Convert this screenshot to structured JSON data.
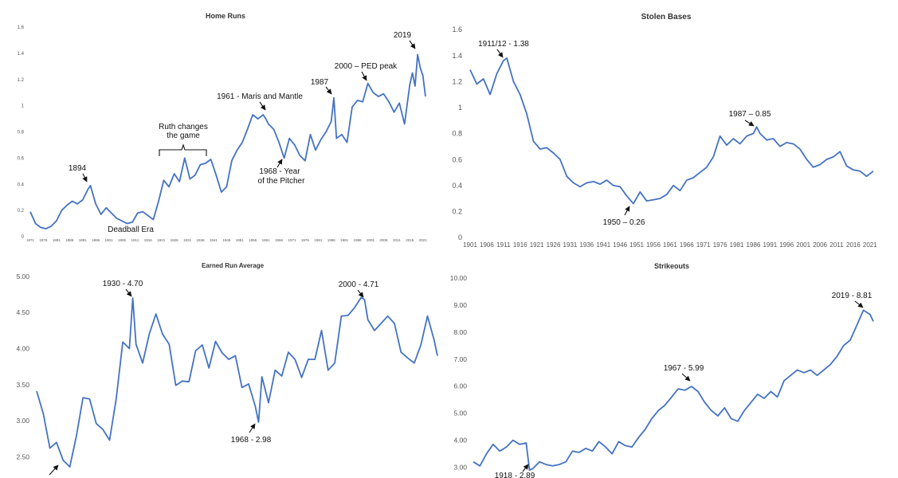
{
  "colors": {
    "line": "#4472c4",
    "text": "#333333",
    "tick": "#555555",
    "arrow": "#111111"
  },
  "chart_data": [
    {
      "type": "line",
      "title": "Home Runs",
      "ylim": [
        0,
        1.6
      ],
      "yticks": [
        "0",
        "0.2",
        "0.4",
        "0.6",
        "0.8",
        "1",
        "1.2",
        "1.4",
        "1.6"
      ],
      "xticks": [
        "1871",
        "1876",
        "1881",
        "1886",
        "1891",
        "1896",
        "1901",
        "1906",
        "1911",
        "1916",
        "1921",
        "1926",
        "1931",
        "1936",
        "1941",
        "1946",
        "1951",
        "1956",
        "1961",
        "1966",
        "1971",
        "1976",
        "1981",
        "1986",
        "1991",
        "1996",
        "2001",
        "2006",
        "2011",
        "2016",
        "2021"
      ],
      "grid": false,
      "series": [
        {
          "x": [
            1871,
            1873,
            1875,
            1877,
            1879,
            1881,
            1883,
            1885,
            1887,
            1889,
            1891,
            1893,
            1894,
            1896,
            1898,
            1900,
            1902,
            1904,
            1906,
            1908,
            1910,
            1912,
            1914,
            1916,
            1918,
            1920,
            1922,
            1924,
            1926,
            1928,
            1930,
            1932,
            1934,
            1936,
            1938,
            1940,
            1942,
            1944,
            1946,
            1948,
            1950,
            1952,
            1954,
            1956,
            1958,
            1960,
            1961,
            1962,
            1964,
            1966,
            1968,
            1970,
            1972,
            1974,
            1976,
            1978,
            1980,
            1982,
            1984,
            1986,
            1987,
            1988,
            1990,
            1992,
            1994,
            1996,
            1998,
            2000,
            2002,
            2004,
            2006,
            2008,
            2010,
            2012,
            2014,
            2016,
            2017,
            2018,
            2019,
            2020,
            2021,
            2022
          ],
          "values": [
            0.19,
            0.1,
            0.07,
            0.06,
            0.08,
            0.12,
            0.2,
            0.24,
            0.27,
            0.25,
            0.28,
            0.36,
            0.39,
            0.25,
            0.17,
            0.22,
            0.18,
            0.14,
            0.12,
            0.1,
            0.11,
            0.18,
            0.19,
            0.16,
            0.13,
            0.27,
            0.43,
            0.38,
            0.48,
            0.42,
            0.6,
            0.44,
            0.47,
            0.55,
            0.56,
            0.59,
            0.47,
            0.34,
            0.38,
            0.58,
            0.66,
            0.72,
            0.82,
            0.93,
            0.9,
            0.93,
            0.9,
            0.86,
            0.82,
            0.72,
            0.6,
            0.75,
            0.7,
            0.62,
            0.58,
            0.78,
            0.66,
            0.74,
            0.8,
            0.88,
            1.06,
            0.75,
            0.78,
            0.72,
            0.99,
            1.04,
            1.03,
            1.17,
            1.1,
            1.07,
            1.09,
            1.03,
            0.95,
            1.02,
            0.86,
            1.16,
            1.25,
            1.15,
            1.39,
            1.29,
            1.23,
            1.07
          ]
        }
      ],
      "annotations": [
        {
          "text": "1894",
          "x": 1894,
          "y": 0.39
        },
        {
          "text": "Deadball Era",
          "x": 1908,
          "y": 0.1
        },
        {
          "text": "Ruth changes",
          "x": 1931,
          "y": 0.57
        },
        {
          "text": "the game",
          "x": 1931,
          "y": 0.57
        },
        {
          "text": "1961 - Maris and Mantle",
          "x": 1961,
          "y": 0.94
        },
        {
          "text": "1968 - Year",
          "x": 1968,
          "y": 0.6
        },
        {
          "text": "of the Pitcher",
          "x": 1968,
          "y": 0.6
        },
        {
          "text": "1987",
          "x": 1987,
          "y": 1.06
        },
        {
          "text": "2000 – PED peak",
          "x": 2000,
          "y": 1.17
        },
        {
          "text": "2019",
          "x": 2019,
          "y": 1.39
        }
      ]
    },
    {
      "type": "line",
      "title": "Stolen Bases",
      "ylim": [
        0,
        1.6
      ],
      "yticks": [
        "0",
        "0.2",
        "0.4",
        "0.6",
        "0.8",
        "1",
        "1.2",
        "1.4",
        "1.6"
      ],
      "xticks": [
        "1901",
        "1906",
        "1911",
        "1916",
        "1921",
        "1926",
        "1931",
        "1936",
        "1941",
        "1946",
        "1951",
        "1956",
        "1961",
        "1966",
        "1971",
        "1976",
        "1981",
        "1986",
        "1991",
        "1996",
        "2001",
        "2006",
        "2011",
        "2016",
        "2021"
      ],
      "grid": false,
      "series": [
        {
          "x": [
            1901,
            1903,
            1905,
            1907,
            1909,
            1911,
            1912,
            1914,
            1916,
            1918,
            1920,
            1922,
            1924,
            1926,
            1928,
            1930,
            1932,
            1934,
            1936,
            1938,
            1940,
            1942,
            1944,
            1946,
            1948,
            1950,
            1952,
            1954,
            1956,
            1958,
            1960,
            1962,
            1964,
            1966,
            1968,
            1970,
            1972,
            1974,
            1976,
            1978,
            1980,
            1982,
            1984,
            1986,
            1987,
            1988,
            1990,
            1992,
            1994,
            1996,
            1998,
            2000,
            2002,
            2004,
            2006,
            2008,
            2010,
            2012,
            2014,
            2016,
            2018,
            2020,
            2022
          ],
          "values": [
            1.29,
            1.18,
            1.22,
            1.1,
            1.26,
            1.36,
            1.38,
            1.2,
            1.1,
            0.95,
            0.74,
            0.68,
            0.69,
            0.65,
            0.6,
            0.47,
            0.42,
            0.39,
            0.42,
            0.43,
            0.41,
            0.44,
            0.4,
            0.39,
            0.32,
            0.26,
            0.35,
            0.28,
            0.29,
            0.3,
            0.33,
            0.4,
            0.36,
            0.44,
            0.46,
            0.5,
            0.54,
            0.62,
            0.78,
            0.71,
            0.76,
            0.72,
            0.78,
            0.8,
            0.85,
            0.8,
            0.75,
            0.76,
            0.7,
            0.73,
            0.72,
            0.68,
            0.6,
            0.54,
            0.56,
            0.6,
            0.62,
            0.66,
            0.55,
            0.52,
            0.51,
            0.47,
            0.51
          ]
        }
      ],
      "annotations": [
        {
          "text": "1911/12 - 1.38",
          "x": 1912,
          "y": 1.38
        },
        {
          "text": "1950 – 0.26",
          "x": 1950,
          "y": 0.26
        },
        {
          "text": "1987 – 0.85",
          "x": 1987,
          "y": 0.85
        }
      ]
    },
    {
      "type": "line",
      "title": "Earned Run Average",
      "ylim": [
        2.25,
        5.0
      ],
      "yticks": [
        "2.50",
        "3.00",
        "3.50",
        "4.00",
        "4.50",
        "5.00"
      ],
      "grid": false,
      "series": [
        {
          "x": [
            1901,
            1903,
            1905,
            1907,
            1909,
            1911,
            1913,
            1915,
            1917,
            1919,
            1921,
            1923,
            1925,
            1927,
            1929,
            1930,
            1931,
            1933,
            1935,
            1937,
            1939,
            1941,
            1943,
            1945,
            1947,
            1949,
            1951,
            1953,
            1955,
            1957,
            1959,
            1961,
            1963,
            1965,
            1967,
            1968,
            1969,
            1971,
            1973,
            1975,
            1977,
            1979,
            1981,
            1983,
            1985,
            1987,
            1989,
            1991,
            1993,
            1995,
            1997,
            1999,
            2000,
            2001,
            2003,
            2005,
            2007,
            2009,
            2011,
            2013,
            2015,
            2017,
            2019,
            2021,
            2022
          ],
          "values": [
            3.41,
            3.1,
            2.62,
            2.7,
            2.45,
            2.36,
            2.79,
            3.32,
            3.3,
            2.96,
            2.88,
            2.73,
            3.3,
            4.09,
            4.0,
            4.7,
            4.06,
            3.8,
            4.2,
            4.48,
            4.2,
            4.06,
            3.49,
            3.55,
            3.54,
            3.97,
            4.05,
            3.73,
            4.1,
            3.94,
            3.85,
            3.9,
            3.46,
            3.51,
            3.2,
            2.98,
            3.61,
            3.25,
            3.7,
            3.62,
            3.95,
            3.85,
            3.6,
            3.85,
            3.85,
            4.25,
            3.7,
            3.8,
            4.45,
            4.46,
            4.57,
            4.71,
            4.68,
            4.4,
            4.25,
            4.35,
            4.45,
            4.35,
            3.95,
            3.87,
            3.8,
            4.05,
            4.45,
            4.12,
            3.9
          ]
        }
      ],
      "annotations": [
        {
          "text": "1930 - 4.70",
          "x": 1930,
          "y": 4.7
        },
        {
          "text": "1968 - 2.98",
          "x": 1968,
          "y": 2.98
        },
        {
          "text": "2000 - 4.71",
          "x": 2000,
          "y": 4.71
        }
      ]
    },
    {
      "type": "line",
      "title": "Strikeouts",
      "ylim": [
        2.75,
        10.0
      ],
      "yticks": [
        "3.00",
        "4.00",
        "5.00",
        "6.00",
        "7.00",
        "8.00",
        "9.00",
        "10.00"
      ],
      "grid": false,
      "series": [
        {
          "x": [
            1901,
            1903,
            1905,
            1907,
            1909,
            1911,
            1913,
            1915,
            1917,
            1918,
            1919,
            1921,
            1923,
            1925,
            1927,
            1929,
            1931,
            1933,
            1935,
            1937,
            1939,
            1941,
            1943,
            1945,
            1947,
            1949,
            1951,
            1953,
            1955,
            1957,
            1959,
            1961,
            1963,
            1965,
            1967,
            1969,
            1971,
            1973,
            1975,
            1977,
            1979,
            1981,
            1983,
            1985,
            1987,
            1989,
            1991,
            1993,
            1995,
            1997,
            1999,
            2001,
            2003,
            2005,
            2007,
            2009,
            2011,
            2013,
            2015,
            2017,
            2019,
            2021,
            2022
          ],
          "values": [
            3.2,
            3.05,
            3.5,
            3.85,
            3.6,
            3.75,
            4.0,
            3.85,
            3.9,
            2.89,
            2.95,
            3.2,
            3.1,
            3.05,
            3.1,
            3.2,
            3.6,
            3.55,
            3.7,
            3.6,
            3.95,
            3.75,
            3.5,
            3.95,
            3.8,
            3.75,
            4.1,
            4.4,
            4.8,
            5.1,
            5.3,
            5.6,
            5.9,
            5.85,
            5.99,
            5.8,
            5.4,
            5.1,
            4.9,
            5.2,
            4.8,
            4.7,
            5.1,
            5.4,
            5.7,
            5.55,
            5.8,
            5.6,
            6.2,
            6.4,
            6.6,
            6.5,
            6.6,
            6.4,
            6.6,
            6.8,
            7.1,
            7.5,
            7.7,
            8.25,
            8.81,
            8.65,
            8.4
          ]
        }
      ],
      "annotations": [
        {
          "text": "1918 - 2.89",
          "x": 1918,
          "y": 2.89
        },
        {
          "text": "1967 - 5.99",
          "x": 1967,
          "y": 5.99
        },
        {
          "text": "2019 - 8.81",
          "x": 2019,
          "y": 8.81
        }
      ]
    }
  ]
}
